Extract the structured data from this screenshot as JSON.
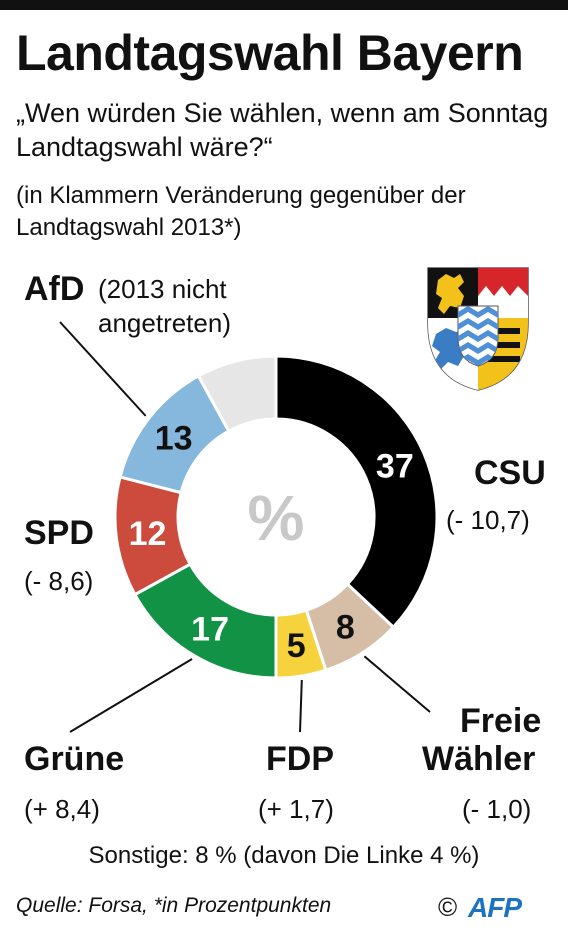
{
  "header": {
    "title": "Landtagswahl Bayern",
    "question": "„Wen würden Sie wählen, wenn am Sonntag Landtagswahl wäre?“",
    "note": "(in Klammern Veränderung gegenüber der Landtagswahl 2013*)"
  },
  "chart_data": {
    "type": "pie",
    "center_label": "%",
    "slices": [
      {
        "party": "CSU",
        "value": 37,
        "label": "37",
        "change": "(- 10,7)",
        "color": "#000000",
        "text_color": "#ffffff"
      },
      {
        "party": "Freie Wähler",
        "party_lines": [
          "Freie",
          "Wähler"
        ],
        "value": 8,
        "label": "8",
        "change": "(- 1,0)",
        "color": "#d6bda6",
        "text_color": "#111111"
      },
      {
        "party": "FDP",
        "value": 5,
        "label": "5",
        "change": "(+ 1,7)",
        "color": "#f6d33c",
        "text_color": "#111111"
      },
      {
        "party": "Grüne",
        "value": 17,
        "label": "17",
        "change": "(+ 8,4)",
        "color": "#129245",
        "text_color": "#ffffff"
      },
      {
        "party": "SPD",
        "value": 12,
        "label": "12",
        "change": "(- 8,6)",
        "color": "#cc4b3c",
        "text_color": "#ffffff"
      },
      {
        "party": "AfD",
        "value": 13,
        "label": "13",
        "change": "(2013 nicht angetreten)",
        "change_lines": [
          "(2013 nicht",
          "angetreten)"
        ],
        "color": "#86b7dd",
        "text_color": "#111111"
      },
      {
        "party": "Sonstige",
        "value": 8,
        "label": "",
        "change": "",
        "color": "#e6e6e6",
        "text_color": "#111111"
      }
    ]
  },
  "footer": {
    "sonstige": "Sonstige: 8 % (davon Die Linke 4 %)",
    "source": "Quelle: Forsa, *in Prozentpunkten",
    "copyright": "©",
    "agency": "AFP"
  }
}
